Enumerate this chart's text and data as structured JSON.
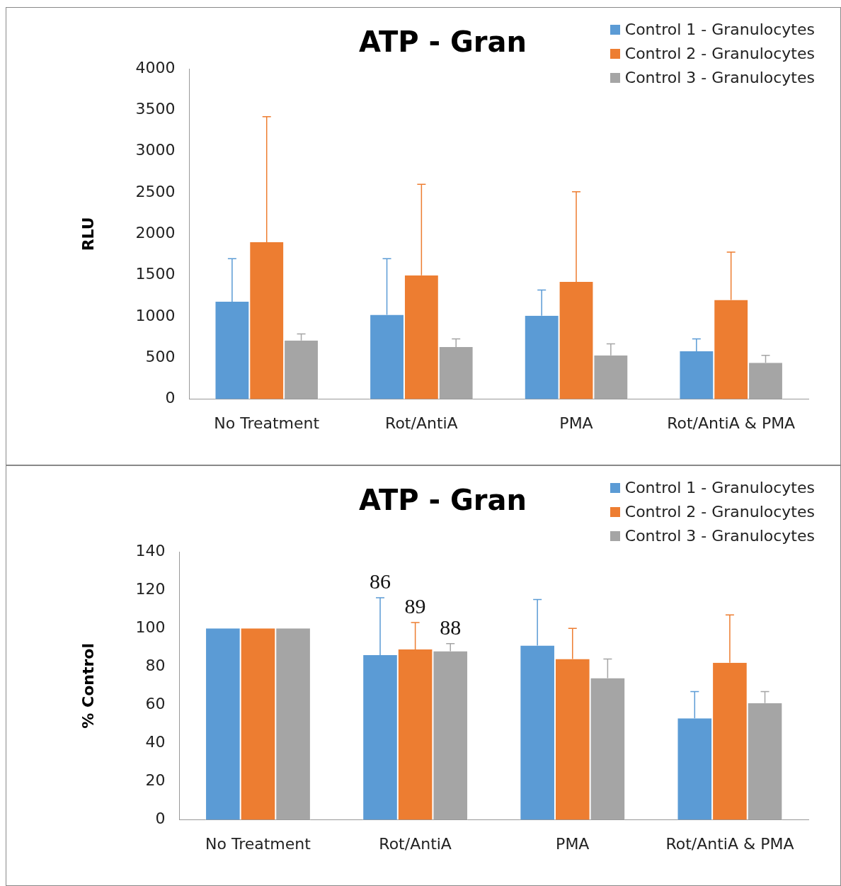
{
  "chart_data": [
    {
      "type": "bar",
      "title": "ATP - Gran",
      "ylabel": "RLU",
      "categories": [
        "No Treatment",
        "Rot/AntiA",
        "PMA",
        "Rot/AntiA & PMA"
      ],
      "ylim": [
        0,
        4000
      ],
      "yticks": [
        0,
        500,
        1000,
        1500,
        2000,
        2500,
        3000,
        3500,
        4000
      ],
      "grid": false,
      "legend": "top right",
      "series": [
        {
          "name": "Control 1 - Granulocytes",
          "color": "#5b9bd5",
          "values": [
            1180,
            1020,
            1010,
            580
          ],
          "errors": [
            [
              1180,
              1700
            ],
            [
              1020,
              1700
            ],
            [
              1010,
              1320
            ],
            [
              580,
              730
            ]
          ]
        },
        {
          "name": "Control 2 - Granulocytes",
          "color": "#ed7d31",
          "values": [
            1900,
            1500,
            1420,
            1200
          ],
          "errors": [
            [
              1900,
              3420
            ],
            [
              1500,
              2600
            ],
            [
              1420,
              2510
            ],
            [
              1200,
              1780
            ]
          ]
        },
        {
          "name": "Control 3 - Granulocytes",
          "color": "#a5a5a5",
          "values": [
            710,
            630,
            530,
            440
          ],
          "errors": [
            [
              710,
              790
            ],
            [
              630,
              730
            ],
            [
              530,
              670
            ],
            [
              440,
              530
            ]
          ]
        }
      ]
    },
    {
      "type": "bar",
      "title": "ATP - Gran",
      "ylabel": "% Control",
      "categories": [
        "No Treatment",
        "Rot/AntiA",
        "PMA",
        "Rot/AntiA & PMA"
      ],
      "ylim": [
        0,
        140
      ],
      "yticks": [
        0,
        20,
        40,
        60,
        80,
        100,
        120,
        140
      ],
      "grid": false,
      "legend": "top right",
      "series": [
        {
          "name": "Control 1 - Granulocytes",
          "color": "#5b9bd5",
          "values": [
            100,
            86,
            91,
            53
          ],
          "errors": [
            null,
            [
              86,
              116
            ],
            [
              91,
              115
            ],
            [
              53,
              67
            ]
          ],
          "value_labels": [
            null,
            "86",
            null,
            null
          ]
        },
        {
          "name": "Control 2 - Granulocytes",
          "color": "#ed7d31",
          "values": [
            100,
            89,
            84,
            82
          ],
          "errors": [
            null,
            [
              89,
              103
            ],
            [
              84,
              100
            ],
            [
              82,
              107
            ]
          ],
          "value_labels": [
            null,
            "89",
            null,
            null
          ]
        },
        {
          "name": "Control 3 - Granulocytes",
          "color": "#a5a5a5",
          "values": [
            100,
            88,
            74,
            61
          ],
          "errors": [
            null,
            [
              88,
              92
            ],
            [
              74,
              84
            ],
            [
              61,
              67
            ]
          ],
          "value_labels": [
            null,
            "88",
            null,
            null
          ]
        }
      ]
    }
  ]
}
